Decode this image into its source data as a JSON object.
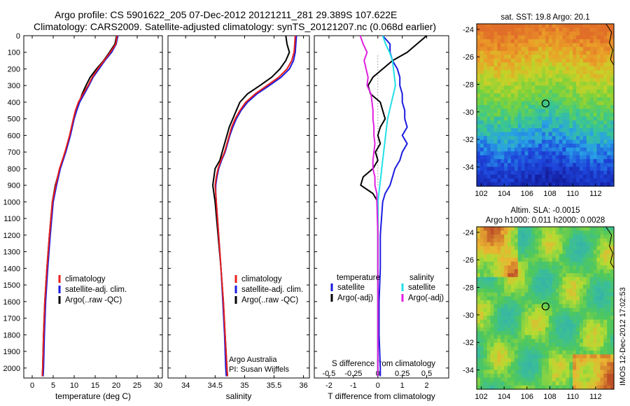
{
  "header": {
    "line1": "Argo profile: CS 5901622_205 07-Dec-2012 20121211_281 29.389S 107.622E",
    "line2": "Climatology: CARS2009. Satellite-adjusted climatology: synTS_20121207.nc (0.068d earlier)"
  },
  "footer": {
    "credit1": "Argo Australia",
    "credit2": "PI: Susan Wijffels",
    "timestamp": "IMOS 12-Dec-2012 17:02:53"
  },
  "colors": {
    "climatology": "#e8201e",
    "satellite": "#1a1adf",
    "argo": "#000000",
    "sat_salinity": "#22e0e8",
    "argo_salinity": "#e020e0"
  },
  "chart_data": [
    {
      "type": "line",
      "name": "temperature-profile",
      "xlabel": "temperature (deg C)",
      "ylabel": "",
      "xlim": [
        -2,
        31
      ],
      "ylim": [
        2060,
        0
      ],
      "xticks": [
        "0",
        "5",
        "10",
        "15",
        "20",
        "25",
        "30"
      ],
      "yticks": [
        "0",
        "100",
        "200",
        "300",
        "400",
        "500",
        "600",
        "700",
        "800",
        "900",
        "1000",
        "1100",
        "1200",
        "1300",
        "1400",
        "1500",
        "1600",
        "1700",
        "1800",
        "1900",
        "2000"
      ],
      "legend": [
        "climatology",
        "satellite-adj. clim.",
        "Argo(..raw -QC)"
      ],
      "depth": [
        0,
        50,
        100,
        150,
        200,
        250,
        300,
        350,
        400,
        450,
        500,
        600,
        700,
        800,
        900,
        1000,
        1200,
        1400,
        1600,
        1800,
        2000,
        2050
      ],
      "series": [
        {
          "name": "climatology",
          "values": [
            20.2,
            19.9,
            18.6,
            17.1,
            15.6,
            14.3,
            13.3,
            12.1,
            11.0,
            10.3,
            9.8,
            8.9,
            7.8,
            6.5,
            5.6,
            4.8,
            4.1,
            3.5,
            3.0,
            2.7,
            2.5,
            2.4
          ]
        },
        {
          "name": "satellite-adj. clim.",
          "values": [
            20.4,
            20.0,
            18.9,
            17.3,
            15.9,
            14.5,
            13.5,
            12.4,
            11.3,
            10.6,
            10.0,
            9.1,
            8.0,
            6.7,
            5.8,
            5.0,
            4.3,
            3.7,
            3.2,
            2.9,
            2.7,
            2.6
          ]
        },
        {
          "name": "Argo(..raw -QC)",
          "values": [
            20.1,
            19.7,
            18.4,
            17.0,
            15.3,
            13.8,
            12.8,
            11.9,
            11.2,
            10.5,
            9.9,
            9.0,
            7.9,
            6.6,
            5.5,
            4.8,
            4.1,
            3.5,
            3.0,
            2.7,
            2.5,
            2.4
          ]
        }
      ]
    },
    {
      "type": "line",
      "name": "salinity-profile",
      "xlabel": "salinity",
      "ylabel": "",
      "xlim": [
        33.7,
        36.1
      ],
      "ylim": [
        2060,
        0
      ],
      "xticks": [
        "34",
        "34.5",
        "35",
        "35.5",
        "36"
      ],
      "legend": [
        "climatology",
        "satellite-adj. clim.",
        "Argo(..raw -QC)"
      ],
      "depth": [
        0,
        50,
        100,
        150,
        200,
        250,
        300,
        350,
        400,
        450,
        500,
        550,
        600,
        650,
        700,
        750,
        800,
        850,
        900,
        950,
        1000,
        1200,
        1400,
        1600,
        1800,
        2000,
        2050
      ],
      "series": [
        {
          "name": "climatology",
          "values": [
            35.86,
            35.85,
            35.84,
            35.8,
            35.72,
            35.58,
            35.38,
            35.18,
            35.02,
            34.92,
            34.84,
            34.78,
            34.74,
            34.7,
            34.66,
            34.6,
            34.55,
            34.52,
            34.5,
            34.51,
            34.52,
            34.56,
            34.6,
            34.64,
            34.67,
            34.7,
            34.71
          ]
        },
        {
          "name": "satellite-adj. clim.",
          "values": [
            35.88,
            35.87,
            35.86,
            35.83,
            35.76,
            35.62,
            35.42,
            35.21,
            35.05,
            34.94,
            34.86,
            34.8,
            34.75,
            34.71,
            34.67,
            34.61,
            34.56,
            34.53,
            34.51,
            34.51,
            34.52,
            34.56,
            34.6,
            34.63,
            34.66,
            34.68,
            34.69
          ]
        },
        {
          "name": "Argo(..raw -QC)",
          "values": [
            35.7,
            35.72,
            35.76,
            35.7,
            35.6,
            35.46,
            35.26,
            35.05,
            34.92,
            34.86,
            34.8,
            34.74,
            34.7,
            34.66,
            34.62,
            34.58,
            34.5,
            34.48,
            34.46,
            34.48,
            34.5,
            34.55,
            34.6,
            34.64,
            34.67,
            34.7,
            34.71
          ]
        }
      ]
    },
    {
      "type": "line",
      "name": "difference-profile",
      "xlabel": "T difference from climatology",
      "xlabel_top": "S difference from climatology",
      "xlim": [
        -2.6,
        2.9
      ],
      "ylim": [
        2060,
        0
      ],
      "xticks": [
        "-2",
        "-1",
        "0",
        "1",
        "2"
      ],
      "xticks_top": [
        "-0.5",
        "-0.25",
        "0",
        "0.25",
        "0.5"
      ],
      "legend_temperature": {
        "title": "temperature",
        "items": [
          "satellite",
          "Argo(-adj)"
        ]
      },
      "legend_salinity": {
        "title": "salinity",
        "items": [
          "satellite",
          "Argo(-adj)"
        ]
      },
      "depth": [
        0,
        50,
        100,
        150,
        200,
        250,
        300,
        350,
        400,
        450,
        500,
        550,
        600,
        650,
        700,
        750,
        800,
        850,
        900,
        950,
        1000,
        1200,
        1400,
        1600,
        1800,
        2000,
        2050
      ],
      "series": [
        {
          "name": "temperature satellite",
          "values": [
            0.2,
            0.5,
            0.5,
            0.6,
            0.8,
            0.9,
            0.9,
            1.0,
            1.0,
            1.1,
            1.1,
            1.2,
            1.0,
            1.2,
            1.0,
            0.9,
            0.7,
            0.6,
            0.5,
            0.3,
            0.2,
            0.1,
            0.1,
            0.05,
            0.05,
            0.1,
            0.1
          ]
        },
        {
          "name": "temperature Argo(-adj)",
          "values": [
            2.0,
            1.6,
            1.2,
            0.6,
            0.2,
            -0.2,
            -0.4,
            -0.3,
            0.1,
            0.2,
            0.3,
            0.1,
            0.0,
            0.1,
            -0.1,
            0.0,
            -0.2,
            -0.6,
            -0.7,
            -0.2,
            0.0,
            0.0,
            0.0,
            0.0,
            0.0,
            0.0,
            0.0
          ]
        },
        {
          "name": "salinity satellite",
          "values": [
            0.05,
            0.08,
            0.12,
            0.15,
            0.16,
            0.17,
            0.18,
            0.16,
            0.14,
            0.12,
            0.1,
            0.09,
            0.08,
            0.07,
            0.06,
            0.05,
            0.04,
            0.03,
            0.02,
            0.01,
            0.0,
            0.0,
            0.0,
            0.0,
            0.0,
            0.0,
            0.0
          ]
        },
        {
          "name": "salinity Argo(-adj)",
          "values": [
            -0.18,
            -0.15,
            -0.11,
            -0.14,
            -0.12,
            -0.1,
            -0.11,
            -0.07,
            -0.06,
            -0.05,
            -0.05,
            -0.04,
            -0.04,
            -0.03,
            -0.04,
            -0.05,
            -0.05,
            -0.03,
            -0.03,
            -0.01,
            -0.01,
            0.0,
            0.0,
            0.0,
            0.0,
            0.0,
            0.0
          ]
        }
      ]
    },
    {
      "type": "heatmap",
      "name": "sst-map",
      "title": "sat. SST: 19.8  Argo: 20.1",
      "xlim": [
        101.6,
        113.6
      ],
      "ylim": [
        -35.4,
        -23.6
      ],
      "xticks": [
        "102",
        "104",
        "106",
        "108",
        "110",
        "112"
      ],
      "yticks": [
        "-24",
        "-26",
        "-28",
        "-30",
        "-32",
        "-34"
      ],
      "marker": {
        "lon": 107.622,
        "lat": -29.389
      }
    },
    {
      "type": "heatmap",
      "name": "sla-map",
      "title": "Altim. SLA: -0.0015",
      "subtitle": "Argo h1000: 0.011 h2000: 0.0028",
      "xlim": [
        101.6,
        113.6
      ],
      "ylim": [
        -35.4,
        -23.6
      ],
      "xticks": [
        "102",
        "104",
        "106",
        "108",
        "110",
        "112"
      ],
      "yticks": [
        "-24",
        "-26",
        "-28",
        "-30",
        "-32",
        "-34"
      ],
      "marker": {
        "lon": 107.622,
        "lat": -29.389
      }
    }
  ]
}
